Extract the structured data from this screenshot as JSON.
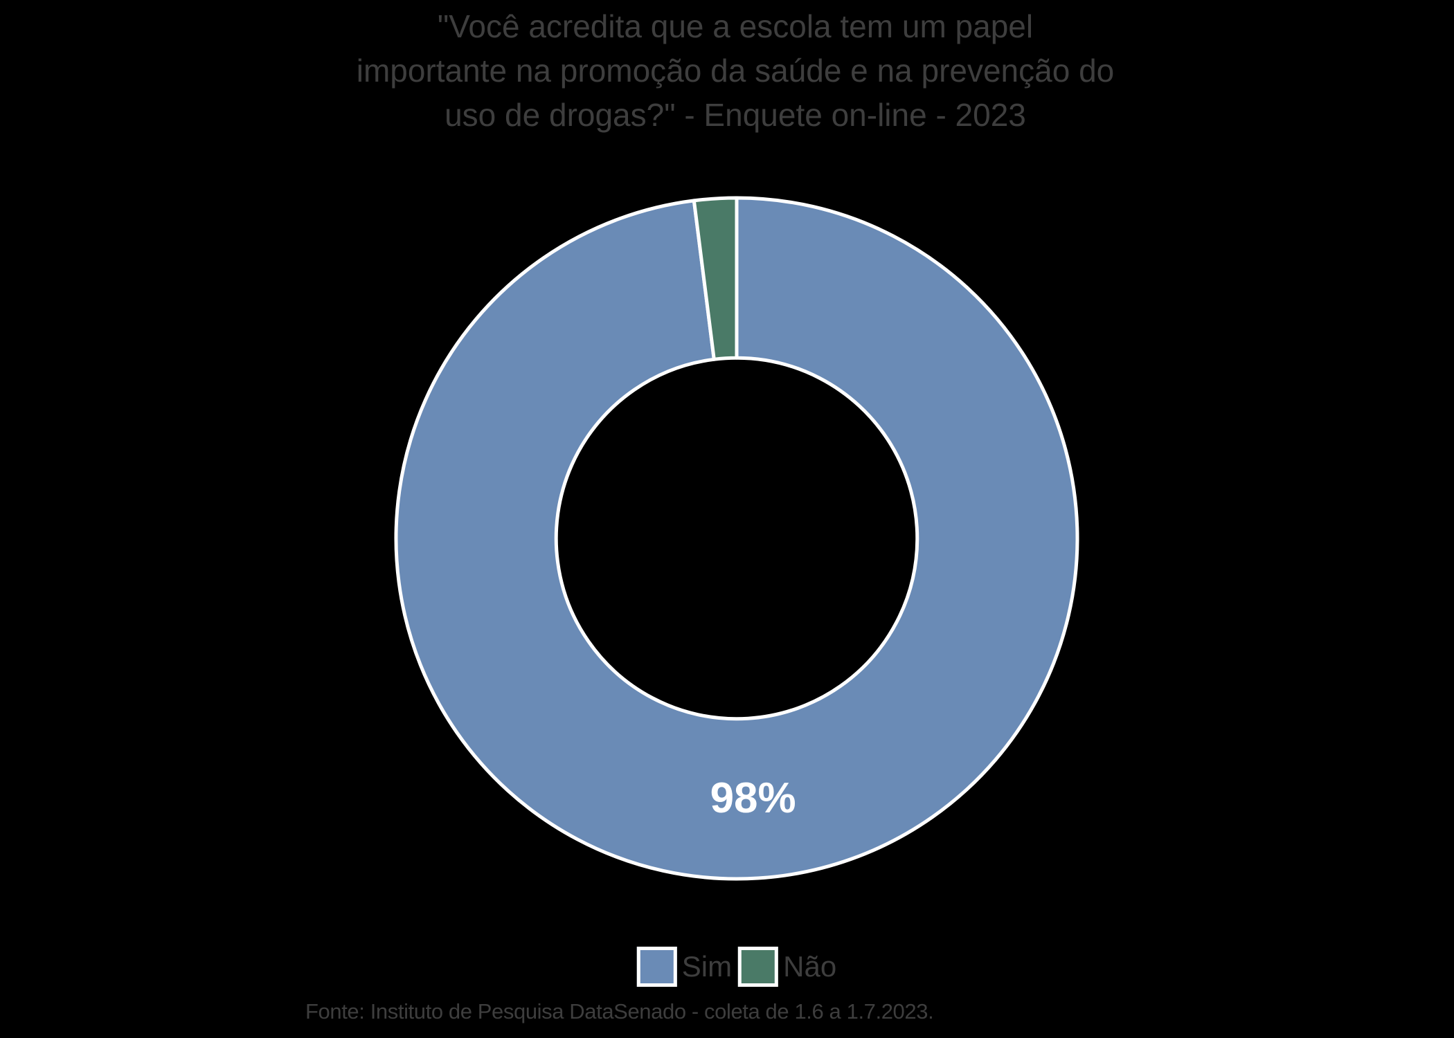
{
  "title": {
    "lines": [
      "\"Você acredita que a escola tem um papel",
      "importante na promoção da saúde e na prevenção do",
      "uso de drogas?\" - Enquete on-line - 2023"
    ]
  },
  "colors": {
    "background": "#000000",
    "text": "#3E3E3E",
    "slice_border": "#FFFFFF",
    "data_label_text": "#FFFFFF",
    "sim_blue": "#6A8BB6",
    "nao_green": "#4A7A67"
  },
  "chart_data": {
    "type": "pie",
    "subtype": "donut",
    "title": "\"Você acredita que a escola tem um papel importante na promoção da saúde e na prevenção do uso de drogas?\" - Enquete on-line - 2023",
    "categories": [
      "Sim",
      "Não"
    ],
    "values": [
      98,
      2
    ],
    "unit": "%",
    "colors": [
      "#6A8BB6",
      "#4A7A67"
    ],
    "data_labels": [
      "98%",
      ""
    ],
    "start_angle_deg": 0,
    "direction": "clockwise",
    "donut_hole_ratio": 0.53,
    "legend_position": "bottom",
    "source": "Fonte: Instituto de Pesquisa DataSenado - coleta de 1.6 a 1.7.2023."
  }
}
